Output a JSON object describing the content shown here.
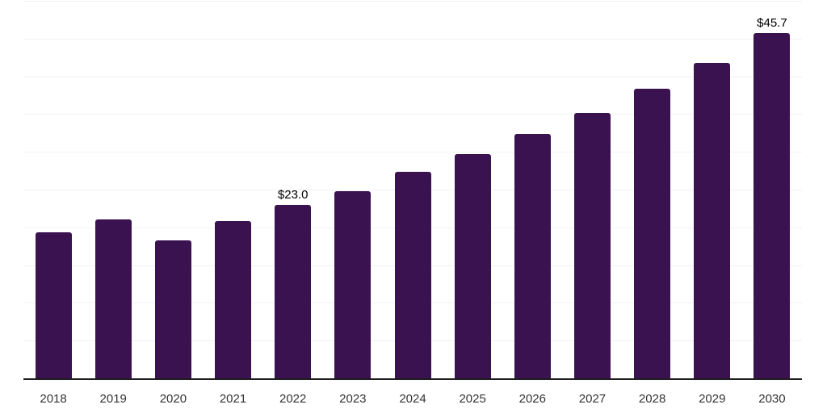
{
  "chart": {
    "background_color": "#ffffff",
    "bar_color": "#3a1250",
    "axis_line_color": "#1f1f1f",
    "gridline_color": "#f1f1f1",
    "year_label_color": "#333333",
    "data_label_color": "#000000"
  },
  "chart_data": {
    "type": "bar",
    "title": "",
    "xlabel": "",
    "ylabel": "",
    "categories": [
      "2018",
      "2019",
      "2020",
      "2021",
      "2022",
      "2023",
      "2024",
      "2025",
      "2026",
      "2027",
      "2028",
      "2029",
      "2030"
    ],
    "values": [
      19.3,
      21.0,
      18.3,
      20.8,
      23.0,
      24.8,
      27.3,
      29.7,
      32.4,
      35.2,
      38.4,
      41.8,
      45.7
    ],
    "data_labels": [
      "",
      "",
      "",
      "",
      "$23.0",
      "",
      "",
      "",
      "",
      "",
      "",
      "",
      "$45.7"
    ],
    "ylim": [
      0,
      50
    ],
    "gridline_step": 5,
    "grid": "horizontal-only",
    "legend_position": "none",
    "bar_corner_radius": 3
  }
}
